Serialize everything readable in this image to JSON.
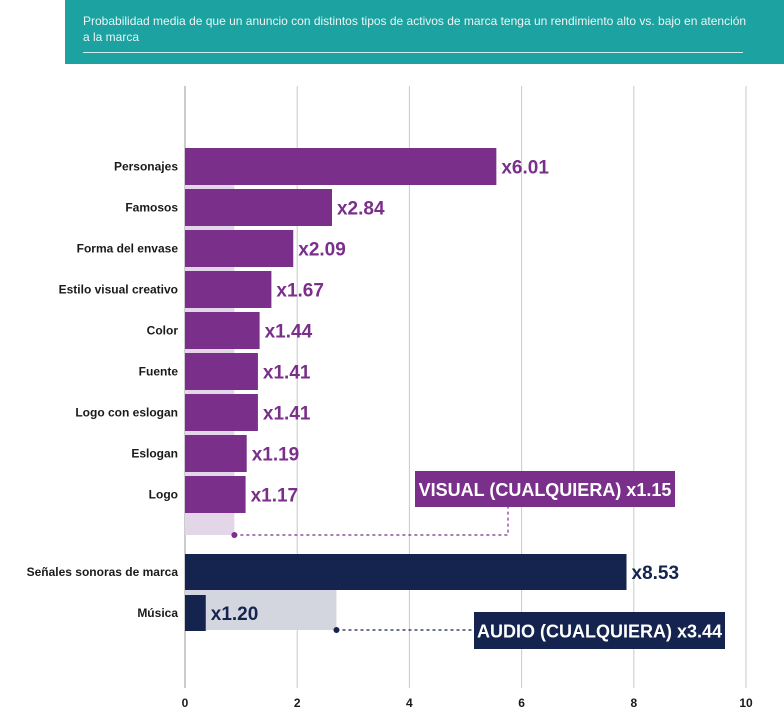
{
  "header": {
    "subtitle": "Probabilidad media de que un anuncio con distintos tipos de activos de marca tenga un rendimiento alto vs. bajo en atención a la marca"
  },
  "chart_data": {
    "type": "bar",
    "orientation": "horizontal",
    "title": "Probabilidad media de que un anuncio con distintos tipos de activos de marca tenga un rendimiento alto vs. bajo en atención a la marca",
    "xlim": [
      0,
      10
    ],
    "xticks": [
      0,
      2,
      4,
      6,
      8,
      10
    ],
    "grid": true,
    "groups": [
      {
        "name": "Visual",
        "color": "#7a2f8a",
        "background_color": "#e3d6e8",
        "categories": [
          "Personajes",
          "Famosos",
          "Forma del envase",
          "Estilo visual creativo",
          "Color",
          "Fuente",
          "Logo con eslogan",
          "Eslogan",
          "Logo"
        ],
        "values": [
          5.55,
          2.62,
          1.93,
          1.54,
          1.33,
          1.3,
          1.3,
          1.1,
          1.08
        ],
        "labels": [
          "x6.01",
          "x2.84",
          "x2.09",
          "x1.67",
          "x1.44",
          "x1.41",
          "x1.41",
          "x1.19",
          "x1.17"
        ],
        "overall_value": 0.88,
        "overall_label": "VISUAL (CUALQUIERA) x1.15"
      },
      {
        "name": "Audio",
        "color": "#15244f",
        "background_color": "#d3d6de",
        "categories": [
          "Señales sonoras de marca",
          "Música"
        ],
        "values": [
          7.87,
          0.37
        ],
        "labels": [
          "x8.53",
          "x1.20"
        ],
        "overall_value": 2.7,
        "overall_label": "AUDIO (CUALQUIERA) x3.44"
      }
    ]
  }
}
